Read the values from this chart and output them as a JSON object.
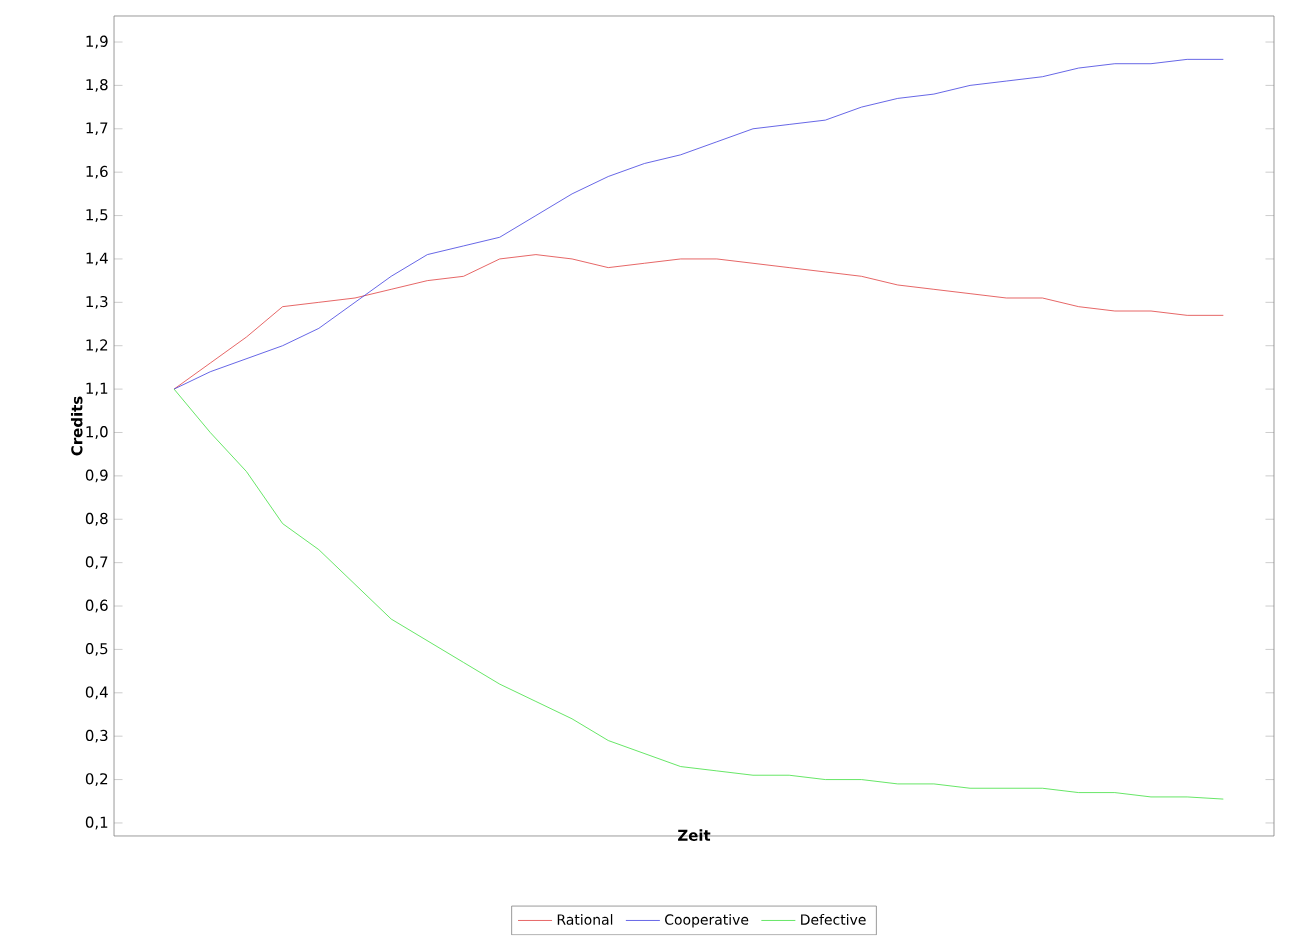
{
  "chart_data": {
    "type": "line",
    "xlabel": "Zeit",
    "ylabel": "Credits",
    "categories": [
      null,
      null,
      null,
      null,
      null,
      null,
      null,
      null,
      null,
      null,
      null,
      null,
      null,
      null,
      null,
      null,
      null,
      null,
      null,
      null,
      null,
      null,
      null,
      null,
      null,
      null,
      null,
      null,
      null,
      null
    ],
    "series": [
      {
        "name": "Rational",
        "color": "#e04040",
        "values": [
          1.1,
          1.16,
          1.22,
          1.29,
          1.3,
          1.31,
          1.33,
          1.35,
          1.36,
          1.4,
          1.41,
          1.4,
          1.38,
          1.39,
          1.4,
          1.4,
          1.39,
          1.38,
          1.37,
          1.36,
          1.34,
          1.33,
          1.32,
          1.31,
          1.31,
          1.29,
          1.28,
          1.28,
          1.27,
          1.27
        ]
      },
      {
        "name": "Cooperative",
        "color": "#4040e0",
        "values": [
          1.1,
          1.14,
          1.17,
          1.2,
          1.24,
          1.3,
          1.36,
          1.41,
          1.43,
          1.45,
          1.5,
          1.55,
          1.59,
          1.62,
          1.64,
          1.67,
          1.7,
          1.71,
          1.72,
          1.75,
          1.77,
          1.78,
          1.8,
          1.81,
          1.82,
          1.84,
          1.85,
          1.85,
          1.86,
          1.86
        ]
      },
      {
        "name": "Defective",
        "color": "#40e040",
        "values": [
          1.1,
          1.0,
          0.91,
          0.79,
          0.73,
          0.65,
          0.57,
          0.52,
          0.47,
          0.42,
          0.38,
          0.34,
          0.29,
          0.26,
          0.23,
          0.22,
          0.21,
          0.21,
          0.2,
          0.2,
          0.19,
          0.19,
          0.18,
          0.18,
          0.18,
          0.17,
          0.17,
          0.16,
          0.16,
          0.155
        ]
      }
    ],
    "ylim": [
      0.07,
      1.96
    ],
    "yticks": [
      {
        "value": 0.1,
        "label": "0,1"
      },
      {
        "value": 0.2,
        "label": "0,2"
      },
      {
        "value": 0.3,
        "label": "0,3"
      },
      {
        "value": 0.4,
        "label": "0,4"
      },
      {
        "value": 0.5,
        "label": "0,5"
      },
      {
        "value": 0.6,
        "label": "0,6"
      },
      {
        "value": 0.7,
        "label": "0,7"
      },
      {
        "value": 0.8,
        "label": "0,8"
      },
      {
        "value": 0.9,
        "label": "0,9"
      },
      {
        "value": 1.0,
        "label": "1,0"
      },
      {
        "value": 1.1,
        "label": "1,1"
      },
      {
        "value": 1.2,
        "label": "1,2"
      },
      {
        "value": 1.3,
        "label": "1,3"
      },
      {
        "value": 1.4,
        "label": "1,4"
      },
      {
        "value": 1.5,
        "label": "1,5"
      },
      {
        "value": 1.6,
        "label": "1,6"
      },
      {
        "value": 1.7,
        "label": "1,7"
      },
      {
        "value": 1.8,
        "label": "1,8"
      },
      {
        "value": 1.9,
        "label": "1,9"
      }
    ],
    "tick_labels": "y",
    "legend": "bottom",
    "grid": false,
    "marker": "none",
    "line_style": "solid"
  }
}
